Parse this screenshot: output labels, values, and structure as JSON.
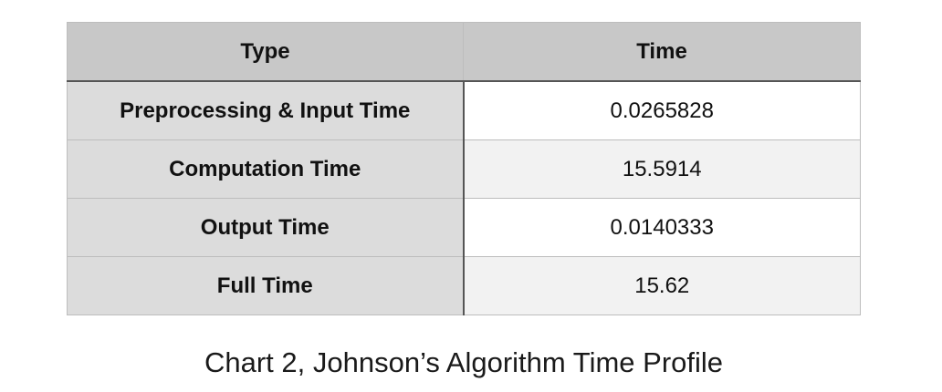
{
  "table": {
    "headers": [
      "Type",
      "Time"
    ],
    "rows": [
      {
        "type": "Preprocessing & Input Time",
        "time": "0.0265828"
      },
      {
        "type": "Computation Time",
        "time": "15.5914"
      },
      {
        "type": "Output Time",
        "time": "0.0140333"
      },
      {
        "type": "Full Time",
        "time": "15.62"
      }
    ]
  },
  "caption": "Chart 2, Johnson’s Algorithm Time Profile",
  "colors": {
    "header_bg": "#c8c8c8",
    "row_header_bg": "#dcdcdc",
    "cell_bg": "#ffffff",
    "cell_alt_bg": "#f2f2f2"
  }
}
